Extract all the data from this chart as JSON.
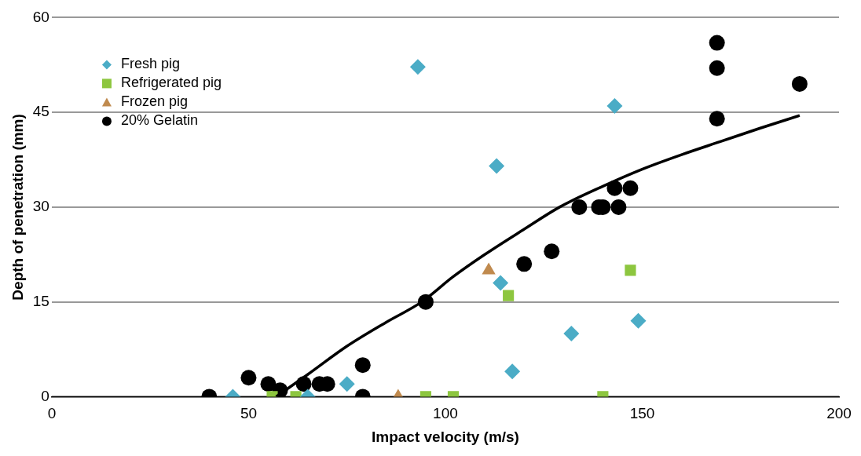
{
  "chart_data": {
    "type": "scatter",
    "xlabel": "Impact velocity (m/s)",
    "ylabel": "Depth of penetration (mm)",
    "xlim": [
      0,
      200
    ],
    "xticks": [
      0,
      50,
      100,
      150,
      200
    ],
    "ylim": [
      0,
      60
    ],
    "yticks": [
      0,
      15,
      30,
      45,
      60
    ],
    "grid": "y",
    "legend": "top left",
    "series": [
      {
        "name": "Fresh pig",
        "color": "#4bacc6",
        "marker": "diamond",
        "x": [
          46,
          65,
          75,
          93,
          113,
          114,
          117,
          132,
          143,
          149
        ],
        "values": [
          0,
          0,
          2,
          52.2,
          36.5,
          18,
          4,
          10,
          46,
          12
        ]
      },
      {
        "name": "Refrigerated pig",
        "color": "#8dc63f",
        "marker": "square",
        "x": [
          56,
          62,
          95,
          102,
          116,
          140,
          147
        ],
        "values": [
          0,
          0,
          0,
          0,
          16,
          0,
          20
        ]
      },
      {
        "name": "Frozen pig",
        "color": "#c08a4e",
        "marker": "triangle",
        "x": [
          88,
          111
        ],
        "values": [
          0,
          20
        ]
      },
      {
        "name": "20% Gelatin",
        "color": "#000000",
        "marker": "circle",
        "x": [
          40,
          50,
          55,
          58,
          64,
          68,
          70,
          79,
          79,
          95,
          120,
          127,
          134,
          139,
          140,
          144,
          143,
          147,
          169,
          169,
          169,
          190
        ],
        "values": [
          0,
          3,
          2,
          1,
          2,
          2,
          2,
          5,
          0,
          15,
          21,
          23,
          30,
          30,
          30,
          30,
          33,
          33,
          56,
          52,
          44,
          49.5
        ]
      },
      {
        "type": "line",
        "color": "#000000",
        "marker": "none",
        "x": [
          57,
          65,
          75,
          85,
          94,
          102,
          110,
          120,
          129,
          140,
          150,
          160,
          170,
          180,
          190
        ],
        "values": [
          0,
          3.5,
          8,
          11.8,
          15,
          19,
          22.5,
          26.5,
          30,
          33.3,
          36,
          38.3,
          40.4,
          42.5,
          44.5
        ]
      }
    ]
  }
}
